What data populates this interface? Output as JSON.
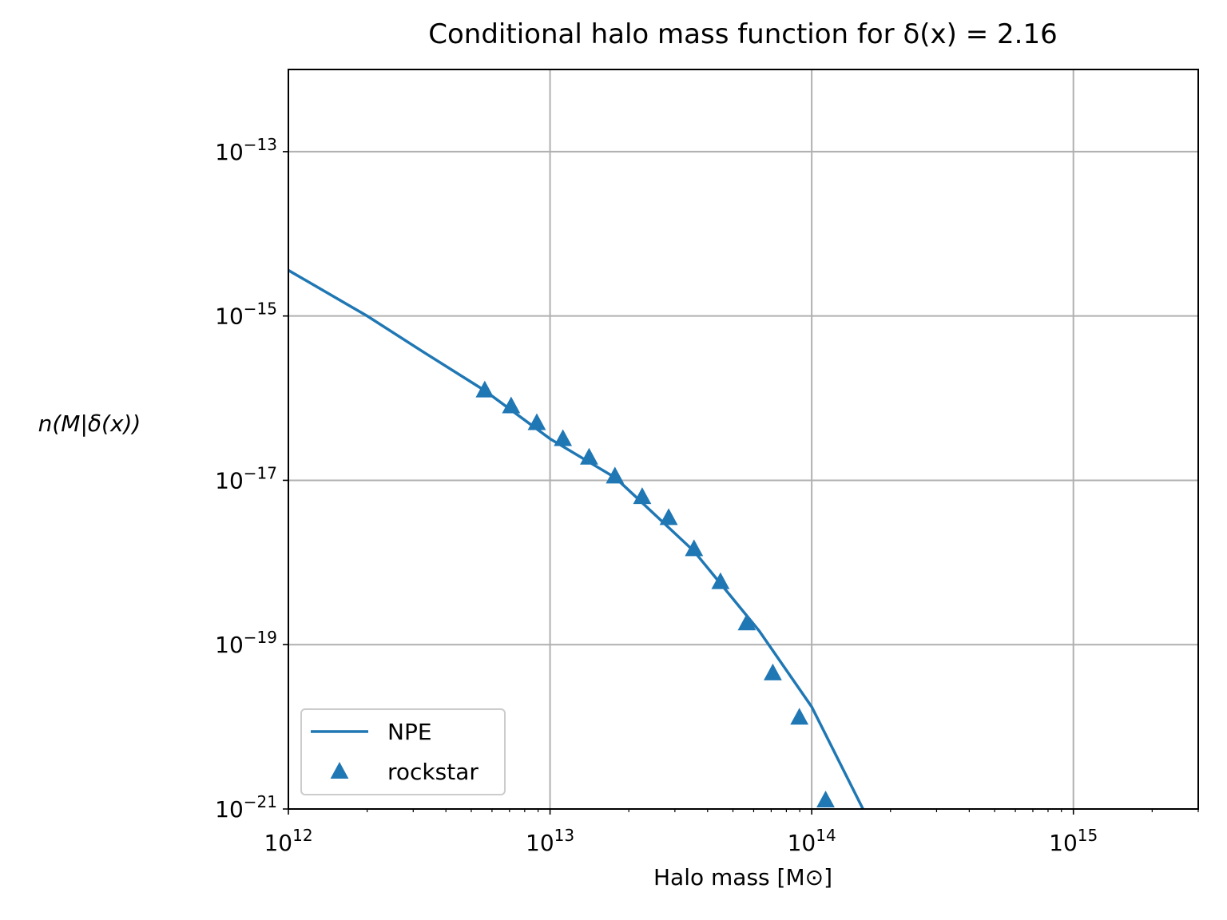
{
  "chart_data": {
    "type": "line-scatter",
    "title": "Conditional halo mass function for δ(x) = 2.16",
    "xlabel": "Halo mass [M⊙]",
    "ylabel": "n(M|δ(x))",
    "xscale": "log",
    "yscale": "log",
    "grid": true,
    "legend": "lower left",
    "xlim": [
      1000000000000.0,
      3000000000000000.0
    ],
    "ylim": [
      1e-21,
      1e-12
    ],
    "xticks": [
      {
        "value": 1000000000000.0,
        "label": "1012"
      },
      {
        "value": 10000000000000.0,
        "label": "1013"
      },
      {
        "value": 100000000000000.0,
        "label": "1014"
      },
      {
        "value": 1000000000000000.0,
        "label": "1015"
      }
    ],
    "xminorticks": [
      2000000000000.0,
      3000000000000.0,
      4000000000000.0,
      5000000000000.0,
      6000000000000.0,
      7000000000000.0,
      8000000000000.0,
      9000000000000.0,
      20000000000000.0,
      30000000000000.0,
      40000000000000.0,
      50000000000000.0,
      60000000000000.0,
      70000000000000.0,
      80000000000000.0,
      90000000000000.0,
      200000000000000.0,
      300000000000000.0,
      400000000000000.0,
      500000000000000.0,
      600000000000000.0,
      700000000000000.0,
      800000000000000.0,
      900000000000000.0,
      2000000000000000.0,
      3000000000000000.0
    ],
    "yticks": [
      {
        "value": 1e-21,
        "label": "10−21"
      },
      {
        "value": 1e-19,
        "label": "10−19"
      },
      {
        "value": 1e-17,
        "label": "10−17"
      },
      {
        "value": 1e-15,
        "label": "10−15"
      },
      {
        "value": 1e-13,
        "label": "10−13"
      }
    ],
    "series": [
      {
        "name": "NPE",
        "kind": "line",
        "color": "#1f77b4",
        "x": [
          1000000000000.0,
          2000000000000.0,
          3300000000000.0,
          5600000000000.0,
          10000000000000.0,
          17800000000000.0,
          35500000000000.0,
          63000000000000.0,
          100000000000000.0,
          157000000000000.0
        ],
        "values": [
          3.6e-15,
          1e-15,
          3.6e-16,
          1.25e-16,
          3.2e-17,
          1.07e-17,
          1.37e-18,
          1.47e-19,
          1.75e-20,
          1e-21
        ]
      },
      {
        "name": "rockstar",
        "kind": "scatter",
        "color": "#1f77b4",
        "x": [
          5630000000000.0,
          7100000000000.0,
          8900000000000.0,
          11200000000000.0,
          14100000000000.0,
          17700000000000.0,
          22500000000000.0,
          28400000000000.0,
          35500000000000.0,
          44800000000000.0,
          56500000000000.0,
          71000000000000.0,
          89700000000000.0,
          113000000000000.0
        ],
        "values": [
          1.25e-16,
          8e-17,
          5e-17,
          3.2e-17,
          1.9e-17,
          1.12e-17,
          6.3e-18,
          3.5e-18,
          1.46e-18,
          5.8e-19,
          1.83e-19,
          4.5e-20,
          1.3e-20,
          1.28e-21
        ]
      }
    ]
  }
}
